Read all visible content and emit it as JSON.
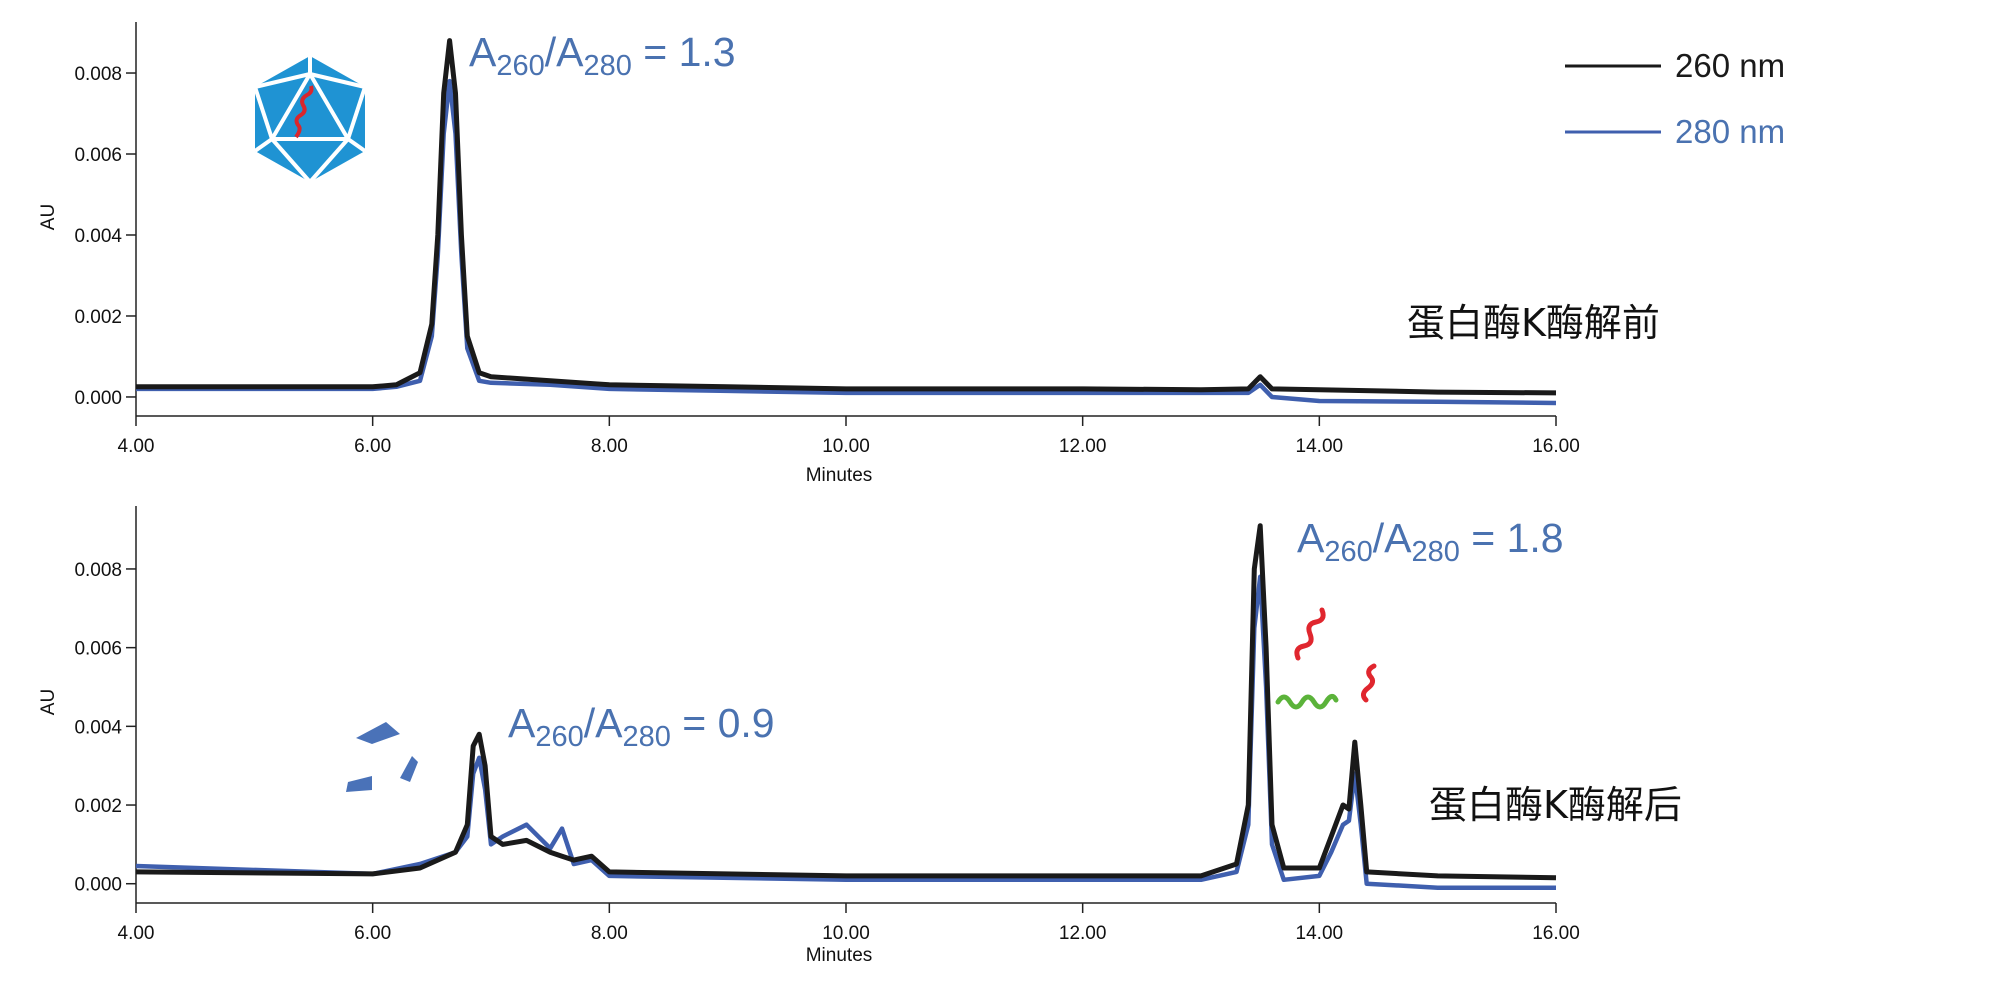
{
  "chart_data": [
    {
      "type": "line",
      "x_label": "Minutes",
      "y_label": "AU",
      "xlim": [
        4,
        16
      ],
      "xticks": [
        {
          "value": 4,
          "label": "4.00"
        },
        {
          "value": 6,
          "label": "6.00"
        },
        {
          "value": 8,
          "label": "8.00"
        },
        {
          "value": 10,
          "label": "10.00"
        },
        {
          "value": 12,
          "label": "12.00"
        },
        {
          "value": 14,
          "label": "14.00"
        },
        {
          "value": 16,
          "label": "16.00"
        }
      ],
      "ylim": [
        -0.00047,
        0.00926
      ],
      "yticks": [
        {
          "value": 0,
          "label": "0.000"
        },
        0.002,
        0.004,
        0.006,
        0.008
      ],
      "legend": "upper right",
      "annotations": [
        {
          "parts": [
            "A",
            "260",
            "/A",
            "280",
            " = 1.3"
          ]
        }
      ],
      "note": "蛋白酶K酶解前",
      "x": [
        4,
        5,
        6,
        6.2,
        6.4,
        6.5,
        6.55,
        6.6,
        6.65,
        6.7,
        6.75,
        6.8,
        6.9,
        7,
        7.5,
        8,
        9,
        10,
        12,
        13,
        13.4,
        13.5,
        13.6,
        14,
        15,
        16
      ],
      "series": [
        {
          "name": "260 nm",
          "color": "#1a1a1a",
          "values": [
            0.00025,
            0.00025,
            0.00025,
            0.0003,
            0.0006,
            0.0018,
            0.004,
            0.0075,
            0.0088,
            0.0075,
            0.004,
            0.0015,
            0.0006,
            0.0005,
            0.0004,
            0.0003,
            0.00025,
            0.0002,
            0.0002,
            0.00018,
            0.0002,
            0.0005,
            0.0002,
            0.00018,
            0.00012,
            0.0001
          ]
        },
        {
          "name": "280 nm",
          "color": "#3f5fae",
          "values": [
            0.0002,
            0.0002,
            0.0002,
            0.00025,
            0.0004,
            0.0015,
            0.0035,
            0.0065,
            0.0078,
            0.0065,
            0.0035,
            0.0012,
            0.0004,
            0.00035,
            0.0003,
            0.0002,
            0.00015,
            0.0001,
            0.0001,
            0.0001,
            0.0001,
            0.0003,
            0.0,
            -0.0001,
            -0.00012,
            -0.00015
          ]
        }
      ]
    },
    {
      "type": "line",
      "x_label": "Minutes",
      "y_label": "AU",
      "xlim": [
        4,
        16
      ],
      "xticks": [
        {
          "value": 4,
          "label": "4.00"
        },
        {
          "value": 6,
          "label": "6.00"
        },
        {
          "value": 8,
          "label": "8.00"
        },
        {
          "value": 10,
          "label": "10.00"
        },
        {
          "value": 12,
          "label": "12.00"
        },
        {
          "value": 14,
          "label": "14.00"
        },
        {
          "value": 16,
          "label": "16.00"
        }
      ],
      "ylim": [
        -0.00049,
        0.0096
      ],
      "yticks": [
        {
          "value": 0,
          "label": "0.000"
        },
        0.002,
        0.004,
        0.006,
        0.008
      ],
      "annotations": [
        {
          "parts": [
            "A",
            "260",
            "/A",
            "280",
            " = 1.8"
          ]
        },
        {
          "parts": [
            "A",
            "260",
            "/A",
            "280",
            " = 0.9"
          ]
        }
      ],
      "note": "蛋白酶K酶解后",
      "x": [
        4,
        6,
        6.4,
        6.7,
        6.8,
        6.85,
        6.9,
        6.95,
        7.0,
        7.1,
        7.3,
        7.5,
        7.6,
        7.7,
        7.85,
        8,
        10,
        12,
        13,
        13.3,
        13.4,
        13.45,
        13.5,
        13.55,
        13.6,
        13.7,
        14,
        14.1,
        14.2,
        14.25,
        14.3,
        14.35,
        14.4,
        15,
        16
      ],
      "series": [
        {
          "color": "#1a1a1a",
          "values": [
            0.0003,
            0.00025,
            0.0004,
            0.0008,
            0.0015,
            0.0035,
            0.0038,
            0.003,
            0.0012,
            0.001,
            0.0011,
            0.0008,
            0.0007,
            0.0006,
            0.0007,
            0.0003,
            0.0002,
            0.0002,
            0.0002,
            0.0005,
            0.002,
            0.008,
            0.0091,
            0.006,
            0.0015,
            0.0004,
            0.0004,
            0.0012,
            0.002,
            0.0019,
            0.0036,
            0.002,
            0.0003,
            0.0002,
            0.00015
          ]
        },
        {
          "color": "#3f5fae",
          "values": [
            0.00045,
            0.00025,
            0.0005,
            0.0008,
            0.0012,
            0.0028,
            0.0032,
            0.0024,
            0.001,
            0.0012,
            0.0015,
            0.0009,
            0.0014,
            0.0005,
            0.0006,
            0.0002,
            0.0001,
            0.0001,
            0.0001,
            0.0003,
            0.0015,
            0.0065,
            0.0078,
            0.005,
            0.001,
            0.0001,
            0.0002,
            0.0008,
            0.0015,
            0.0016,
            0.0028,
            0.0015,
            0.0,
            -0.0001,
            -0.0001
          ]
        }
      ]
    }
  ]
}
